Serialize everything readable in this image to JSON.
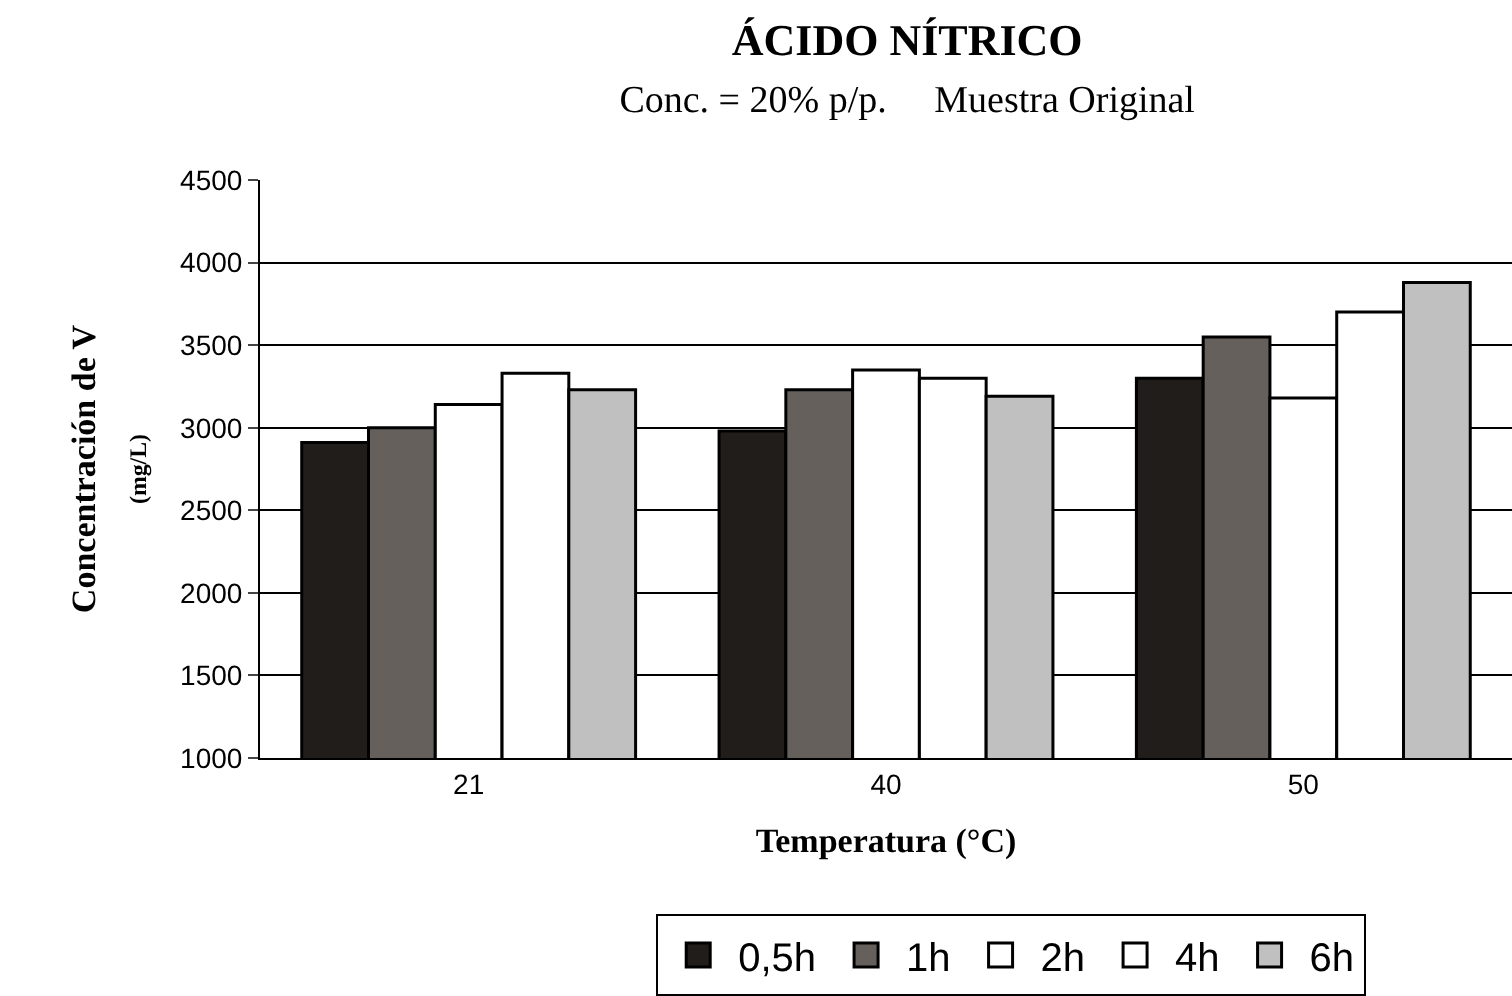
{
  "chart_data": {
    "type": "bar",
    "title": "ÁCIDO NÍTRICO",
    "subtitle": "Conc. = 20% p/p.     Muestra Original",
    "xlabel": "Temperatura (°C)",
    "ylabel": "Concentración de V$_{(mg/L)}$",
    "categories": [
      "21",
      "40",
      "50"
    ],
    "series": [
      {
        "name": "0,5h",
        "color": "#211d1a",
        "values": [
          2910,
          2980,
          3300
        ]
      },
      {
        "name": "1h",
        "color": "#66605c",
        "values": [
          3000,
          3230,
          3550
        ]
      },
      {
        "name": "2h",
        "color": "#ffffff",
        "values": [
          3140,
          3350,
          3180
        ]
      },
      {
        "name": "4h",
        "color": "#ffffff",
        "values": [
          3330,
          3300,
          3700
        ]
      },
      {
        "name": "6h",
        "color": "#c0c0c0",
        "values": [
          3230,
          3190,
          3880
        ]
      }
    ],
    "ylim": [
      1000,
      4500
    ],
    "yticks": [
      1000,
      1500,
      2000,
      2500,
      3000,
      3500,
      4000,
      4500
    ],
    "grid": "y",
    "legend": "bottom"
  }
}
